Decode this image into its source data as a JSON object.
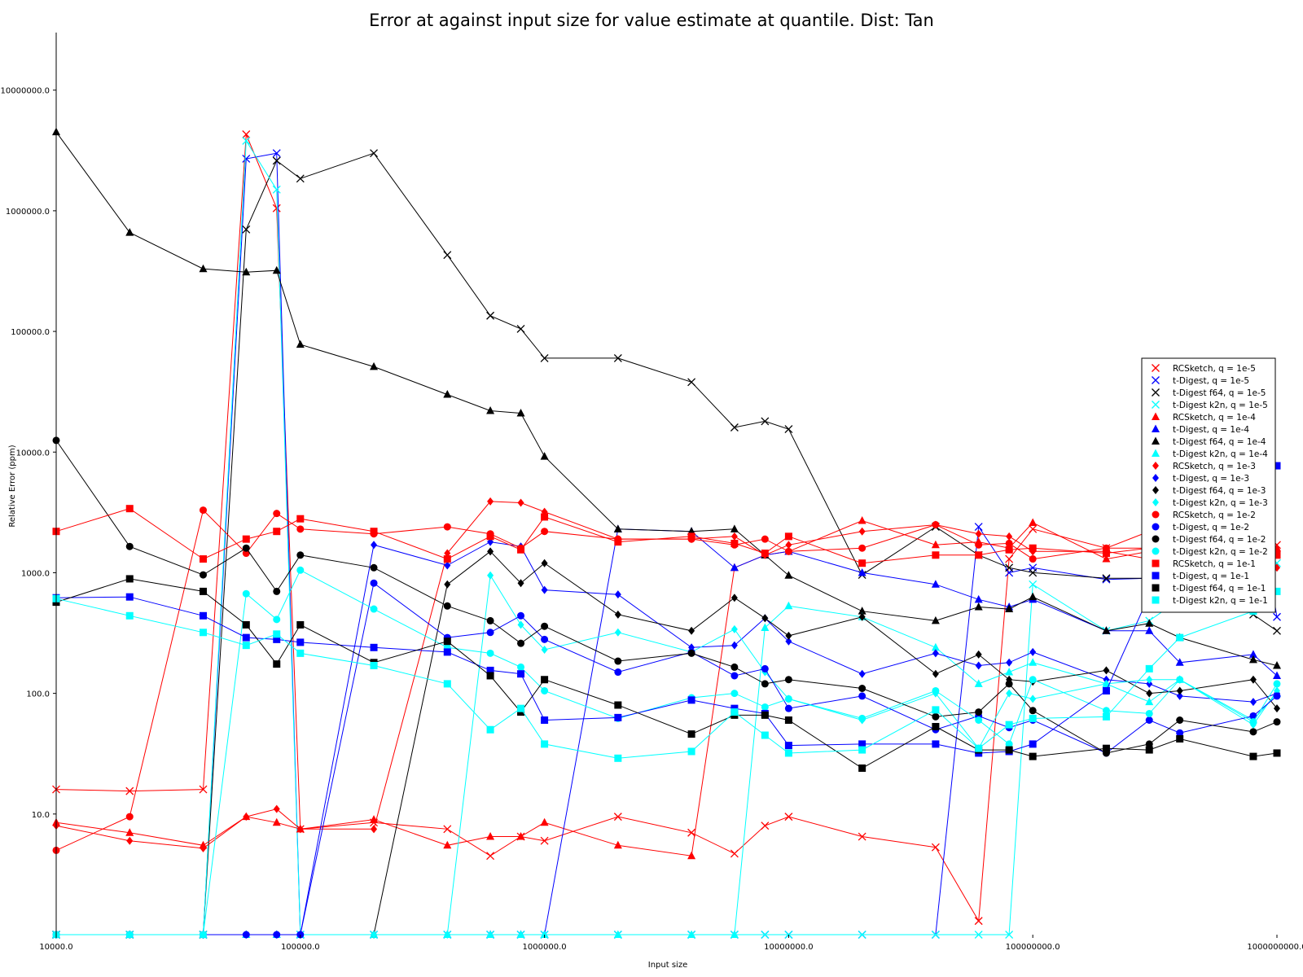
{
  "chart_data": {
    "type": "line",
    "title": "Error at against input size for value estimate at quantile. Dist: Tan",
    "xlabel": "Input size",
    "ylabel": "Relative Error (ppm)",
    "xscale": "log",
    "yscale": "log",
    "xlim": [
      10000,
      1000000000
    ],
    "ylim": [
      1,
      30000000
    ],
    "xticks": [
      {
        "value": 10000,
        "label": "10000.0"
      },
      {
        "value": 100000,
        "label": "100000.0"
      },
      {
        "value": 1000000,
        "label": "1000000.0"
      },
      {
        "value": 10000000,
        "label": "10000000.0"
      },
      {
        "value": 100000000,
        "label": "100000000.0"
      },
      {
        "value": 1000000000,
        "label": "1000000000.0"
      }
    ],
    "yticks": [
      {
        "value": 10,
        "label": "10.0"
      },
      {
        "value": 100,
        "label": "100.0"
      },
      {
        "value": 1000,
        "label": "1000.0"
      },
      {
        "value": 10000,
        "label": "10000.0"
      },
      {
        "value": 100000,
        "label": "100000.0"
      },
      {
        "value": 1000000,
        "label": "1000000.0"
      },
      {
        "value": 10000000,
        "label": "10000000.0"
      }
    ],
    "legend_position": "right",
    "x": [
      10000,
      20000,
      40000,
      60000,
      80000,
      100000,
      200000,
      400000,
      600000,
      800000,
      1000000,
      2000000,
      4000000,
      6000000,
      8000000,
      10000000,
      20000000,
      40000000,
      60000000,
      80000000,
      100000000,
      200000000,
      300000000,
      400000000,
      800000000,
      1000000000
    ],
    "series": [
      {
        "name": "RCSketch, q = 1e-5",
        "color": "#ff0000",
        "marker": "x",
        "values": [
          16,
          15.5,
          16,
          4300000,
          1050000,
          7.5,
          8.5,
          7.5,
          4.5,
          6.5,
          6,
          9.5,
          7,
          4.7,
          8,
          9.5,
          6.5,
          5.3,
          1.3,
          1300,
          2300,
          1600,
          2200,
          1600,
          1000,
          1700
        ]
      },
      {
        "name": "t-Digest, q = 1e-5",
        "color": "#0000ff",
        "marker": "x",
        "values": [
          1,
          1,
          1,
          2700000,
          3000000,
          1,
          1,
          1,
          1,
          1,
          1,
          1,
          1,
          1,
          1,
          1,
          1,
          1,
          2400,
          1000,
          1100,
          880,
          900,
          900,
          6500,
          430
        ]
      },
      {
        "name": "t-Digest f64, q = 1e-5",
        "color": "#000000",
        "marker": "x",
        "values": [
          1,
          1,
          1,
          700000,
          2600000,
          1850000,
          3000000,
          430000,
          135000,
          105000,
          60000,
          60000,
          38000,
          16000,
          18000,
          15500,
          960,
          2400,
          1400,
          1100,
          1000,
          900,
          900,
          900,
          450,
          330
        ]
      },
      {
        "name": "t-Digest k2n, q = 1e-5",
        "color": "#00ffff",
        "marker": "x",
        "values": [
          1,
          1,
          1,
          3800000,
          1500000,
          1,
          1,
          1,
          1,
          1,
          1,
          1,
          1,
          1,
          1,
          1,
          1,
          1,
          1,
          1,
          800,
          330,
          400,
          600,
          900,
          1200
        ]
      },
      {
        "name": "RCSketch, q = 1e-4",
        "color": "#ff0000",
        "marker": "triangle",
        "values": [
          8.5,
          7,
          5.5,
          9.5,
          8.5,
          7.5,
          9,
          5.5,
          6.5,
          6.5,
          8.5,
          5.5,
          4.5,
          1100,
          1400,
          1500,
          2700,
          1700,
          1800,
          1600,
          2600,
          1300,
          1500,
          1600,
          1000,
          1600
        ]
      },
      {
        "name": "t-Digest, q = 1e-4",
        "color": "#0000ff",
        "marker": "triangle",
        "values": [
          1,
          1,
          1,
          1,
          1,
          1,
          1,
          1,
          1,
          1,
          1,
          2300,
          2200,
          1100,
          1400,
          1500,
          1000,
          800,
          600,
          520,
          600,
          330,
          330,
          180,
          210,
          140
        ]
      },
      {
        "name": "t-Digest f64, q = 1e-4",
        "color": "#000000",
        "marker": "triangle",
        "values": [
          4500000,
          660000,
          330000,
          310000,
          320000,
          78000,
          51000,
          30000,
          22000,
          21000,
          9200,
          2300,
          2200,
          2300,
          1400,
          950,
          480,
          400,
          520,
          500,
          630,
          330,
          380,
          290,
          190,
          170
        ]
      },
      {
        "name": "t-Digest k2n, q = 1e-4",
        "color": "#00ffff",
        "marker": "triangle",
        "values": [
          1,
          1,
          1,
          1,
          1,
          1,
          1,
          1,
          1,
          1,
          1,
          1,
          1,
          1,
          350,
          530,
          430,
          240,
          120,
          150,
          180,
          120,
          85,
          130,
          60,
          100
        ]
      },
      {
        "name": "RCSketch, q = 1e-3",
        "color": "#ff0000",
        "marker": "diamond",
        "values": [
          8,
          6,
          5.2,
          9.5,
          11,
          7.5,
          7.5,
          1450,
          3900,
          3800,
          3200,
          1900,
          1900,
          2000,
          1400,
          1700,
          2200,
          2500,
          2100,
          2000,
          1500,
          1500,
          1300,
          1800,
          1300,
          1100
        ]
      },
      {
        "name": "t-Digest, q = 1e-3",
        "color": "#0000ff",
        "marker": "diamond",
        "values": [
          1,
          1,
          1,
          1,
          1,
          1,
          1700,
          1150,
          1800,
          1650,
          720,
          660,
          240,
          250,
          420,
          270,
          145,
          215,
          170,
          180,
          220,
          130,
          120,
          95,
          85,
          100
        ]
      },
      {
        "name": "t-Digest f64, q = 1e-3",
        "color": "#000000",
        "marker": "diamond",
        "values": [
          1,
          1,
          1,
          1,
          1,
          1,
          1,
          800,
          1500,
          820,
          1200,
          450,
          330,
          620,
          420,
          300,
          430,
          145,
          210,
          130,
          125,
          155,
          100,
          105,
          130,
          75
        ]
      },
      {
        "name": "t-Digest k2n, q = 1e-3",
        "color": "#00ffff",
        "marker": "diamond",
        "values": [
          1,
          1,
          1,
          1,
          1,
          1,
          1,
          1,
          950,
          370,
          230,
          320,
          220,
          340,
          150,
          90,
          60,
          100,
          35,
          100,
          90,
          120,
          130,
          130,
          55,
          105
        ]
      },
      {
        "name": "RCSketch, q = 1e-2",
        "color": "#ff0000",
        "marker": "circle",
        "values": [
          5,
          9.5,
          3300,
          1450,
          3100,
          2300,
          2100,
          2400,
          2100,
          1600,
          2200,
          1900,
          1900,
          1700,
          1900,
          1500,
          1600,
          2500,
          1700,
          1750,
          1300,
          1600,
          1600,
          1700,
          1600,
          1500
        ]
      },
      {
        "name": "t-Digest, q = 1e-2",
        "color": "#0000ff",
        "marker": "circle",
        "values": [
          1,
          1,
          1,
          1,
          1,
          1,
          820,
          290,
          320,
          440,
          280,
          150,
          220,
          140,
          160,
          75,
          95,
          50,
          65,
          52,
          60,
          32,
          60,
          47,
          65,
          95
        ]
      },
      {
        "name": "t-Digest f64, q = 1e-2",
        "color": "#000000",
        "marker": "circle",
        "values": [
          12500,
          1650,
          960,
          1600,
          700,
          1400,
          1100,
          530,
          400,
          260,
          360,
          185,
          215,
          165,
          120,
          130,
          110,
          64,
          70,
          120,
          72,
          32,
          38,
          60,
          48,
          58
        ]
      },
      {
        "name": "t-Digest k2n, q = 1e-2",
        "color": "#00ffff",
        "marker": "circle",
        "values": [
          1,
          1,
          1,
          670,
          410,
          1050,
          500,
          240,
          215,
          165,
          105,
          62,
          92,
          100,
          77,
          90,
          62,
          105,
          60,
          38,
          130,
          72,
          68,
          130,
          58,
          120
        ]
      },
      {
        "name": "RCSketch, q = 1e-1",
        "color": "#ff0000",
        "marker": "square",
        "values": [
          2200,
          3400,
          1300,
          1900,
          2200,
          2800,
          2200,
          1300,
          2000,
          1550,
          2900,
          1800,
          2000,
          1750,
          1450,
          2000,
          1200,
          1400,
          1400,
          1550,
          1600,
          1450,
          1600,
          1800,
          1700,
          1400
        ]
      },
      {
        "name": "t-Digest, q = 1e-1",
        "color": "#0000ff",
        "marker": "square",
        "values": [
          620,
          630,
          440,
          290,
          280,
          265,
          240,
          220,
          155,
          145,
          60,
          63,
          88,
          75,
          68,
          37,
          38,
          38,
          32,
          33,
          38,
          105,
          650,
          580,
          6500,
          7700
        ]
      },
      {
        "name": "t-Digest f64, q = 1e-1",
        "color": "#000000",
        "marker": "square",
        "values": [
          570,
          890,
          700,
          370,
          175,
          370,
          180,
          270,
          140,
          70,
          130,
          80,
          46,
          66,
          66,
          60,
          24,
          53,
          34,
          34,
          30,
          35,
          34,
          42,
          30,
          32
        ]
      },
      {
        "name": "t-Digest k2n, q = 1e-1",
        "color": "#00ffff",
        "marker": "square",
        "values": [
          610,
          440,
          320,
          250,
          310,
          215,
          170,
          120,
          50,
          75,
          38,
          29,
          33,
          70,
          45,
          32,
          34,
          73,
          35,
          55,
          62,
          64,
          160,
          290,
          480,
          700
        ]
      }
    ]
  }
}
